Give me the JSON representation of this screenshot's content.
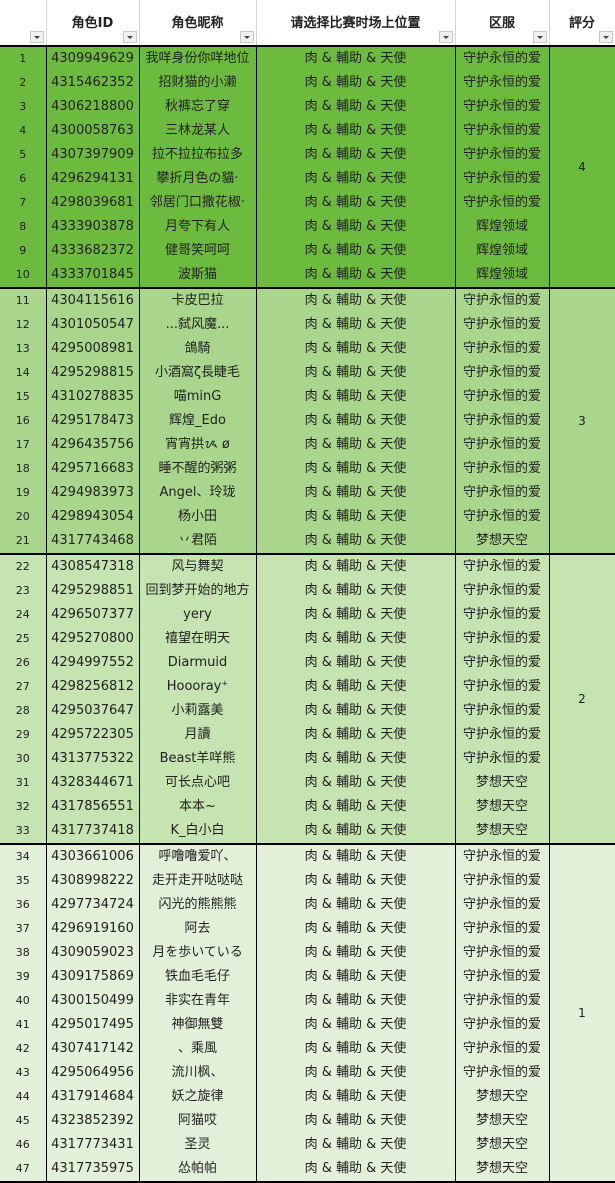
{
  "headers": [
    "",
    "角色ID",
    "角色昵称",
    "请选择比赛时场上位置",
    "区服",
    "評分"
  ],
  "colors": {
    "group4": "#6dbb3e",
    "group3": "#a9d68c",
    "group2": "#c5e4b1",
    "group1": "#e2f0d9"
  },
  "groups": [
    {
      "score": "4",
      "rows": [
        [
          "1",
          "4309949629",
          "我咩身份你咩地位",
          "肉 & 輔助 & 天使",
          "守护永恒的爱"
        ],
        [
          "2",
          "4315462352",
          "招财猫的小濑",
          "肉 & 輔助 & 天使",
          "守护永恒的爱"
        ],
        [
          "3",
          "4306218800",
          "秋裤忘了穿",
          "肉 & 輔助 & 天使",
          "守护永恒的爱"
        ],
        [
          "4",
          "4300058763",
          "三林龙某人",
          "肉 & 輔助 & 天使",
          "守护永恒的爱"
        ],
        [
          "5",
          "4307397909",
          "拉不拉拉布拉多",
          "肉 & 輔助 & 天使",
          "守护永恒的爱"
        ],
        [
          "6",
          "4296294131",
          "攀折月色の貓·",
          "肉 & 輔助 & 天使",
          "守护永恒的爱"
        ],
        [
          "7",
          "4298039681",
          "邻居门口撒花椒·",
          "肉 & 輔助 & 天使",
          "守护永恒的爱"
        ],
        [
          "8",
          "4333903878",
          "月夸下有人",
          "肉 & 輔助 & 天使",
          "辉煌领域"
        ],
        [
          "9",
          "4333682372",
          "健哥笑呵呵",
          "肉 & 輔助 & 天使",
          "辉煌领域"
        ],
        [
          "10",
          "4333701845",
          "波斯猫",
          "肉 & 輔助 & 天使",
          "辉煌领域"
        ]
      ]
    },
    {
      "score": "3",
      "rows": [
        [
          "11",
          "4304115616",
          "卡皮巴拉",
          "肉 & 輔助 & 天使",
          "守护永恒的爱"
        ],
        [
          "12",
          "4301050547",
          "...弑风魔...",
          "肉 & 輔助 & 天使",
          "守护永恒的爱"
        ],
        [
          "13",
          "4295008981",
          "鴿騎",
          "肉 & 輔助 & 天使",
          "守护永恒的爱"
        ],
        [
          "14",
          "4295298815",
          "小酒窩ζ長睫毛",
          "肉 & 輔助 & 天使",
          "守护永恒的爱"
        ],
        [
          "15",
          "4310278835",
          "喵minG",
          "肉 & 輔助 & 天使",
          "守护永恒的爱"
        ],
        [
          "16",
          "4295178473",
          "辉煌_Edo",
          "肉 & 輔助 & 天使",
          "守护永恒的爱"
        ],
        [
          "17",
          "4296435756",
          "宵宵拱ᝰ  ø",
          "肉 & 輔助 & 天使",
          "守护永恒的爱"
        ],
        [
          "18",
          "4295716683",
          "睡不醒的粥粥",
          "肉 & 輔助 & 天使",
          "守护永恒的爱"
        ],
        [
          "19",
          "4294983973",
          "Angel、玲珑",
          "肉 & 輔助 & 天使",
          "守护永恒的爱"
        ],
        [
          "20",
          "4298943054",
          "杨小田",
          "肉 & 輔助 & 天使",
          "守护永恒的爱"
        ],
        [
          "21",
          "4317743468",
          "丷君陌",
          "肉 & 輔助 & 天使",
          "梦想天空"
        ]
      ]
    },
    {
      "score": "2",
      "rows": [
        [
          "22",
          "4308547318",
          "风与舞契",
          "肉 & 輔助 & 天使",
          "守护永恒的爱"
        ],
        [
          "23",
          "4295298851",
          "回到梦开始的地方",
          "肉 & 輔助 & 天使",
          "守护永恒的爱"
        ],
        [
          "24",
          "4296507377",
          "yery",
          "肉 & 輔助 & 天使",
          "守护永恒的爱"
        ],
        [
          "25",
          "4295270800",
          "禧望在明天",
          "肉 & 輔助 & 天使",
          "守护永恒的爱"
        ],
        [
          "26",
          "4294997552",
          "Diarmuid",
          "肉 & 輔助 & 天使",
          "守护永恒的爱"
        ],
        [
          "27",
          "4298256812",
          "Hoooray⁺",
          "肉 & 輔助 & 天使",
          "守护永恒的爱"
        ],
        [
          "28",
          "4295037647",
          "小莉露美",
          "肉 & 輔助 & 天使",
          "守护永恒的爱"
        ],
        [
          "29",
          "4295722305",
          "月讀",
          "肉 & 輔助 & 天使",
          "守护永恒的爱"
        ],
        [
          "30",
          "4313775322",
          "Beast羊咩熊",
          "肉 & 輔助 & 天使",
          "守护永恒的爱"
        ],
        [
          "31",
          "4328344671",
          "可长点心吧",
          "肉 & 輔助 & 天使",
          "梦想天空"
        ],
        [
          "32",
          "4317856551",
          "本本~",
          "肉 & 輔助 & 天使",
          "梦想天空"
        ],
        [
          "33",
          "4317737418",
          "K_白小白",
          "肉 & 輔助 & 天使",
          "梦想天空"
        ]
      ]
    },
    {
      "score": "1",
      "rows": [
        [
          "34",
          "4303661006",
          "呼噜噜爱吖、",
          "肉 & 輔助 & 天使",
          "守护永恒的爱"
        ],
        [
          "35",
          "4308998222",
          "走开走开哒哒哒",
          "肉 & 輔助 & 天使",
          "守护永恒的爱"
        ],
        [
          "36",
          "4297734724",
          "闪光的熊熊熊",
          "肉 & 輔助 & 天使",
          "守护永恒的爱"
        ],
        [
          "37",
          "4296919160",
          "阿去",
          "肉 & 輔助 & 天使",
          "守护永恒的爱"
        ],
        [
          "38",
          "4309059023",
          "月を歩いている",
          "肉 & 輔助 & 天使",
          "守护永恒的爱"
        ],
        [
          "39",
          "4309175869",
          "铁血毛毛仔",
          "肉 & 輔助 & 天使",
          "守护永恒的爱"
        ],
        [
          "40",
          "4300150499",
          "非实在青年",
          "肉 & 輔助 & 天使",
          "守护永恒的爱"
        ],
        [
          "41",
          "4295017495",
          "神御無雙",
          "肉 & 輔助 & 天使",
          "守护永恒的爱"
        ],
        [
          "42",
          "4307417142",
          "、乘風",
          "肉 & 輔助 & 天使",
          "守护永恒的爱"
        ],
        [
          "43",
          "4295064956",
          "流川枫、",
          "肉 & 輔助 & 天使",
          "守护永恒的爱"
        ],
        [
          "44",
          "4317914684",
          "妖之旋律",
          "肉 & 輔助 & 天使",
          "梦想天空"
        ],
        [
          "45",
          "4323852392",
          "阿猫哎",
          "肉 & 輔助 & 天使",
          "梦想天空"
        ],
        [
          "46",
          "4317773431",
          "圣灵",
          "肉 & 輔助 & 天使",
          "梦想天空"
        ],
        [
          "47",
          "4317735975",
          "怂帕帕",
          "肉 & 輔助 & 天使",
          "梦想天空"
        ]
      ]
    }
  ]
}
